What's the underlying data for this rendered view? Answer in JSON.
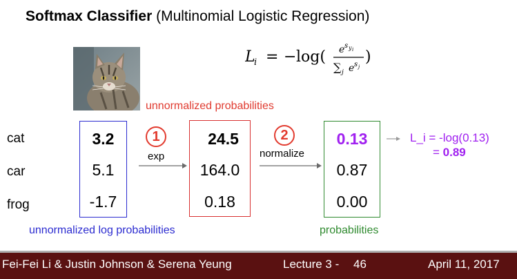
{
  "title": {
    "bold": "Softmax Classifier",
    "rest": " (Multinomial Logistic Regression)"
  },
  "formula_text": "L_i = -log(e^{s_{y_i}} / Σ_j e^{s_j})",
  "classes": [
    "cat",
    "car",
    "frog"
  ],
  "log_probs": [
    "3.2",
    "5.1",
    "-1.7"
  ],
  "unnormalized_probs": [
    "24.5",
    "164.0",
    "0.18"
  ],
  "probs": [
    "0.13",
    "0.87",
    "0.00"
  ],
  "steps": {
    "step1_number": "1",
    "step1_label": "exp",
    "step2_number": "2",
    "step2_label": "normalize"
  },
  "captions": {
    "unnormalized_probabilities": "unnormalized probabilities",
    "unnormalized_log_probabilities": "unnormalized log probabilities",
    "probabilities": "probabilities"
  },
  "loss": {
    "line1": "L_i = -log(0.13)",
    "eq": "= ",
    "value": "0.89"
  },
  "footer": {
    "authors": "Fei-Fei Li & Justin Johnson & Serena Yeung",
    "lecture": "Lecture 3 - ",
    "page": "46",
    "date": "April 11, 2017"
  },
  "colors": {
    "blue": "#2b2bd0",
    "red": "#d83030",
    "green": "#2f8a2f",
    "purple": "#a020f0",
    "footer_bg": "#5a1111"
  }
}
